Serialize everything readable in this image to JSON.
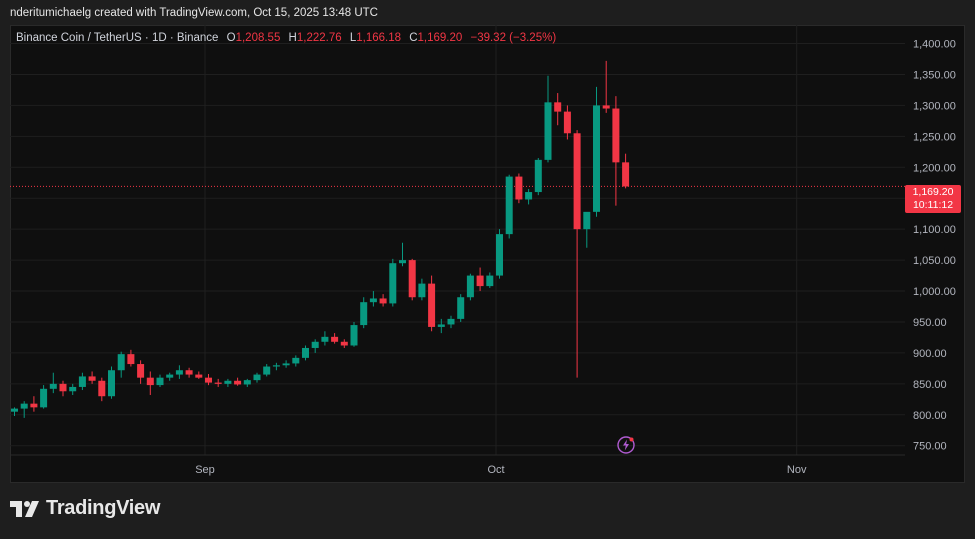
{
  "header": {
    "credit": "nderitumichaelg created with TradingView.com, Oct 15, 2025 13:48 UTC"
  },
  "legend": {
    "symbol": "Binance Coin / TetherUS · 1D · Binance",
    "o_label": "O",
    "o_value": "1,208.55",
    "h_label": "H",
    "h_value": "1,222.76",
    "l_label": "L",
    "l_value": "1,166.18",
    "c_label": "C",
    "c_value": "1,169.20",
    "change": "−39.32 (−3.25%)"
  },
  "price_tag": {
    "price": "1,169.20",
    "countdown": "10:11:12"
  },
  "brand": "TradingView",
  "colors": {
    "up": "#089981",
    "down": "#f23645",
    "background": "#0f0f0f",
    "grid": "#1f1f1f"
  },
  "chart_data": {
    "type": "candlestick",
    "y_ticks": [
      "1,400.00",
      "1,350.00",
      "1,300.00",
      "1,250.00",
      "1,200.00",
      "1,150.00",
      "1,100.00",
      "1,050.00",
      "1,000.00",
      "950.00",
      "900.00",
      "850.00",
      "800.00",
      "750.00"
    ],
    "y_tick_values": [
      1400,
      1350,
      1300,
      1250,
      1200,
      1150,
      1100,
      1050,
      1000,
      950,
      900,
      850,
      800,
      750
    ],
    "x_ticks": [
      {
        "label": "Sep",
        "index": 20
      },
      {
        "label": "Oct",
        "index": 50
      },
      {
        "label": "Nov",
        "index": 81
      }
    ],
    "ylim": [
      735,
      1430
    ],
    "last_price": 1169.2,
    "candles": [
      [
        805,
        812,
        798,
        810
      ],
      [
        810,
        822,
        795,
        818
      ],
      [
        818,
        830,
        805,
        812
      ],
      [
        812,
        848,
        810,
        842
      ],
      [
        842,
        868,
        835,
        850
      ],
      [
        850,
        855,
        830,
        838
      ],
      [
        838,
        850,
        832,
        845
      ],
      [
        845,
        868,
        840,
        862
      ],
      [
        862,
        870,
        850,
        855
      ],
      [
        855,
        860,
        822,
        830
      ],
      [
        830,
        878,
        826,
        872
      ],
      [
        872,
        902,
        860,
        898
      ],
      [
        898,
        905,
        878,
        882
      ],
      [
        882,
        888,
        850,
        860
      ],
      [
        860,
        870,
        832,
        848
      ],
      [
        848,
        865,
        845,
        860
      ],
      [
        860,
        868,
        855,
        865
      ],
      [
        865,
        880,
        858,
        872
      ],
      [
        872,
        876,
        860,
        865
      ],
      [
        865,
        870,
        858,
        860
      ],
      [
        860,
        866,
        848,
        852
      ],
      [
        852,
        858,
        845,
        850
      ],
      [
        850,
        858,
        845,
        855
      ],
      [
        855,
        860,
        847,
        849
      ],
      [
        849,
        858,
        845,
        856
      ],
      [
        856,
        868,
        852,
        865
      ],
      [
        865,
        882,
        862,
        878
      ],
      [
        878,
        884,
        872,
        880
      ],
      [
        880,
        888,
        876,
        883
      ],
      [
        883,
        896,
        878,
        892
      ],
      [
        892,
        912,
        888,
        908
      ],
      [
        908,
        922,
        900,
        918
      ],
      [
        918,
        935,
        912,
        926
      ],
      [
        926,
        932,
        915,
        918
      ],
      [
        918,
        922,
        908,
        912
      ],
      [
        912,
        950,
        910,
        945
      ],
      [
        945,
        990,
        940,
        982
      ],
      [
        982,
        1000,
        975,
        988
      ],
      [
        988,
        995,
        975,
        980
      ],
      [
        980,
        1052,
        975,
        1045
      ],
      [
        1045,
        1078,
        1040,
        1050
      ],
      [
        1050,
        1052,
        985,
        990
      ],
      [
        990,
        1020,
        985,
        1012
      ],
      [
        1012,
        1025,
        935,
        942
      ],
      [
        942,
        955,
        932,
        946
      ],
      [
        946,
        960,
        940,
        955
      ],
      [
        955,
        995,
        950,
        990
      ],
      [
        990,
        1028,
        985,
        1025
      ],
      [
        1025,
        1038,
        1000,
        1008
      ],
      [
        1008,
        1030,
        1005,
        1025
      ],
      [
        1025,
        1100,
        1020,
        1092
      ],
      [
        1092,
        1188,
        1085,
        1185
      ],
      [
        1185,
        1190,
        1142,
        1148
      ],
      [
        1148,
        1165,
        1140,
        1160
      ],
      [
        1160,
        1215,
        1155,
        1212
      ],
      [
        1212,
        1348,
        1208,
        1305
      ],
      [
        1305,
        1320,
        1268,
        1290
      ],
      [
        1290,
        1300,
        1245,
        1255
      ],
      [
        1255,
        1260,
        860,
        1100
      ],
      [
        1100,
        1122,
        1070,
        1128
      ],
      [
        1128,
        1330,
        1120,
        1300
      ],
      [
        1300,
        1372,
        1288,
        1295
      ],
      [
        1295,
        1315,
        1138,
        1208
      ],
      [
        1208,
        1222,
        1166,
        1169
      ]
    ]
  }
}
